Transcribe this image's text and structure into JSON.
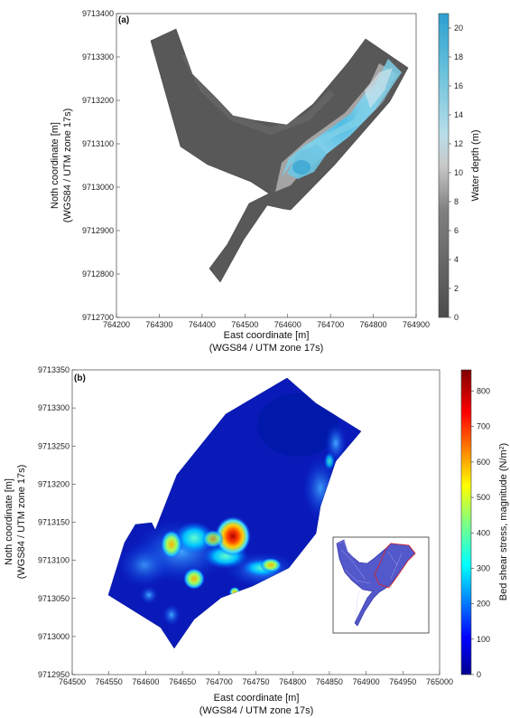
{
  "chart_data": [
    {
      "type": "heatmap",
      "panel_label": "(a)",
      "xlabel": "East coordinate [m]",
      "xlabel2": "(WGS84 / UTM zone 17s)",
      "ylabel": "Noth coordinate [m]",
      "ylabel2": "(WGS84 / UTM zone 17s)",
      "xlim": [
        764200,
        764900
      ],
      "ylim": [
        9712700,
        9713400
      ],
      "x_ticks": [
        "764200",
        "764300",
        "764400",
        "764500",
        "764600",
        "764700",
        "764800",
        "764900"
      ],
      "y_ticks": [
        "9712700",
        "9712800",
        "9712900",
        "9713000",
        "9713100",
        "9713200",
        "9713300",
        "9713400"
      ],
      "colorbar": {
        "label": "Water depth (m)",
        "range": [
          0,
          21
        ],
        "ticks": [
          "0",
          "2",
          "4",
          "6",
          "8",
          "10",
          "12",
          "14",
          "16",
          "18",
          "20"
        ]
      }
    },
    {
      "type": "heatmap",
      "panel_label": "(b)",
      "xlabel": "East coordinate [m]",
      "xlabel2": "(WGS84 / UTM zone 17s)",
      "ylabel": "Noth coordinate [m]",
      "ylabel2": "(WGS84 / UTM zone 17s)",
      "xlim": [
        764500,
        765000
      ],
      "ylim": [
        9712950,
        9713350
      ],
      "x_ticks": [
        "764500",
        "764550",
        "764600",
        "764650",
        "764700",
        "764750",
        "764800",
        "764850",
        "764900",
        "764950",
        "765000"
      ],
      "y_ticks": [
        "9712950",
        "9713000",
        "9713050",
        "9713100",
        "9713150",
        "9713200",
        "9713250",
        "9713300",
        "9713350"
      ],
      "colorbar": {
        "label": "Bed shear stress, magnitude (N/m",
        "label_sup": "2",
        "label_end": ")",
        "range": [
          0,
          860
        ],
        "ticks": [
          "0",
          "100",
          "200",
          "300",
          "400",
          "500",
          "600",
          "700",
          "800"
        ]
      }
    }
  ]
}
